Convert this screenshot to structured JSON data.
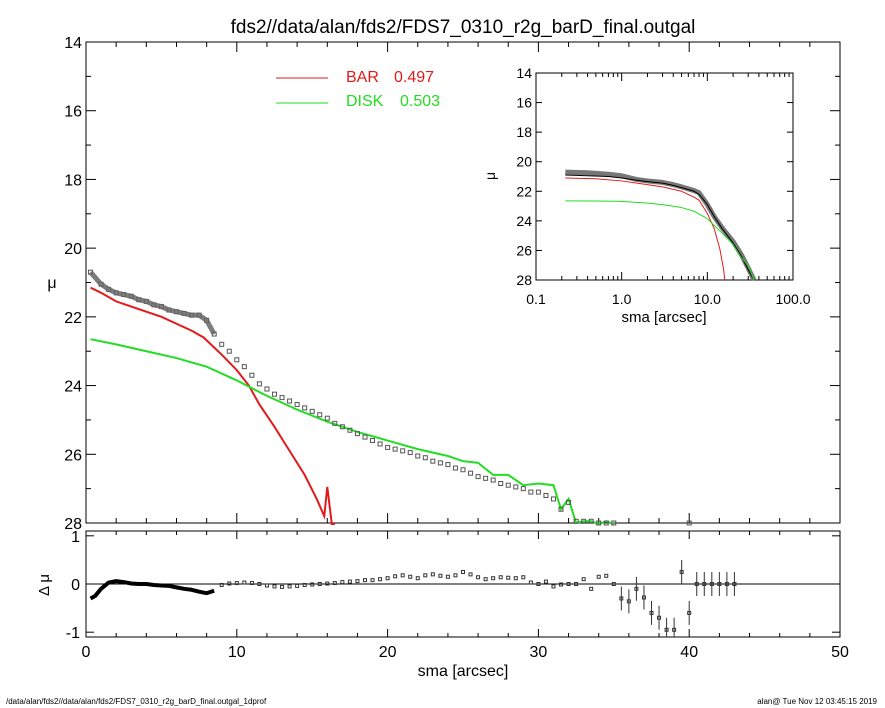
{
  "chart_data": [
    {
      "id": "main",
      "type": "line",
      "title": "fds2//data/alan/fds2/FDS7_0310_r2g_barD_final.outgal",
      "xlabel": "sma [arcsec]",
      "ylabel": "μ",
      "xlim": [
        0,
        50
      ],
      "ylim": [
        28,
        14
      ],
      "yticks": [
        14,
        16,
        18,
        20,
        22,
        24,
        26,
        28
      ],
      "xticks": [
        0,
        10,
        20,
        30,
        40,
        50
      ],
      "legend": {
        "placement": "top-center",
        "entries": [
          {
            "label": "BAR",
            "value": "0.497",
            "color": "#e31a1c"
          },
          {
            "label": "DISK",
            "value": "0.503",
            "color": "#22dd22"
          }
        ]
      },
      "series": [
        {
          "name": "BAR",
          "color": "#e31a1c",
          "x": [
            0.3,
            1.0,
            2.0,
            3.0,
            4.0,
            5.0,
            6.0,
            7.0,
            7.8,
            9.0,
            10.0,
            10.8,
            11.5,
            12.5,
            13.5,
            14.5,
            15.3,
            15.8,
            16.0,
            16.3,
            16.5
          ],
          "y": [
            21.15,
            21.3,
            21.55,
            21.7,
            21.85,
            22.0,
            22.2,
            22.4,
            22.6,
            23.1,
            23.55,
            24.0,
            24.55,
            25.2,
            25.9,
            26.6,
            27.3,
            27.8,
            26.95,
            28.1,
            28.3
          ]
        },
        {
          "name": "DISK",
          "color": "#22dd22",
          "x": [
            0.3,
            2,
            4,
            6,
            8,
            10,
            12,
            14,
            16,
            18,
            20,
            22,
            24,
            25,
            26,
            27,
            28,
            29,
            30,
            31,
            31.5,
            32,
            32.5,
            33,
            33.5,
            34,
            34.5,
            35
          ],
          "y": [
            22.65,
            22.8,
            23.0,
            23.2,
            23.45,
            23.85,
            24.3,
            24.7,
            25.05,
            25.35,
            25.6,
            25.85,
            26.05,
            26.2,
            26.25,
            26.6,
            26.6,
            26.9,
            26.85,
            26.9,
            27.6,
            27.3,
            28.0,
            27.95,
            27.95,
            28.05,
            27.95,
            28.05
          ]
        },
        {
          "name": "",
          "kind": "data-points",
          "color": "#555555",
          "x": [
            0.3,
            1.0,
            1.5,
            2.0,
            2.5,
            3.0,
            3.5,
            4.0,
            4.5,
            5.0,
            5.5,
            6.0,
            6.5,
            7.0,
            7.5,
            8.0,
            8.5,
            9.0,
            9.5,
            10.0,
            10.5,
            11.0,
            11.5,
            12.0,
            12.5,
            13.0,
            13.5,
            14.0,
            14.5,
            15.0,
            15.5,
            16.0,
            16.5,
            17.0,
            17.5,
            18.0,
            18.5,
            19.0,
            19.5,
            20.0,
            20.5,
            21.0,
            21.5,
            22.0,
            22.5,
            23.0,
            23.5,
            24.0,
            24.5,
            25.0,
            25.5,
            26.0,
            26.5,
            27.0,
            27.5,
            28.0,
            28.5,
            29.0,
            29.5,
            30.0,
            30.5,
            31.0,
            31.5,
            32.0,
            32.5,
            33.0,
            33.5,
            34.0,
            34.5,
            35.0,
            40.0
          ],
          "y": [
            20.7,
            21.05,
            21.2,
            21.3,
            21.35,
            21.4,
            21.5,
            21.55,
            21.65,
            21.7,
            21.8,
            21.85,
            21.9,
            21.95,
            21.95,
            22.1,
            22.5,
            22.8,
            23.0,
            23.25,
            23.45,
            23.7,
            23.95,
            24.1,
            24.25,
            24.35,
            24.45,
            24.55,
            24.65,
            24.75,
            24.85,
            24.95,
            25.1,
            25.2,
            25.3,
            25.4,
            25.5,
            25.6,
            25.7,
            25.8,
            25.85,
            25.9,
            25.95,
            26.05,
            26.1,
            26.2,
            26.25,
            26.3,
            26.4,
            26.45,
            26.55,
            26.65,
            26.7,
            26.75,
            26.85,
            26.9,
            26.95,
            27.0,
            27.1,
            27.1,
            27.2,
            27.3,
            27.6,
            27.4,
            27.95,
            27.95,
            27.95,
            28.0,
            28.0,
            28.0,
            28.0
          ]
        }
      ]
    },
    {
      "id": "inset",
      "type": "line",
      "title": "",
      "xlabel": "sma [arcsec]",
      "ylabel": "μ",
      "xscale": "log",
      "xlim": [
        0.1,
        100.0
      ],
      "ylim": [
        28,
        14
      ],
      "xticks": [
        0.1,
        1.0,
        10.0,
        100.0
      ],
      "xtick_labels": [
        "0.1",
        "1.0",
        "10.0",
        "100.0"
      ],
      "yticks": [
        14,
        16,
        18,
        20,
        22,
        24,
        26,
        28
      ],
      "series": [
        {
          "name": "",
          "color": "#777777",
          "x": [
            0.22,
            0.4,
            0.7,
            1.0,
            1.5,
            2.0,
            3.0,
            4.0,
            5.0,
            7.0,
            8.0,
            10.0,
            12.0,
            15.0,
            20.0,
            25.0,
            30.0,
            35.0
          ],
          "y": [
            20.7,
            20.75,
            20.85,
            20.95,
            21.2,
            21.3,
            21.4,
            21.55,
            21.7,
            21.95,
            22.1,
            22.9,
            23.7,
            24.5,
            25.4,
            26.3,
            27.2,
            28.0
          ]
        },
        {
          "name": "",
          "color": "#000000",
          "x": [
            0.22,
            0.4,
            0.7,
            1.0,
            1.5,
            2.0,
            3.0,
            4.0,
            5.0,
            7.0,
            8.0,
            10.0,
            12.0,
            15.0,
            20.0,
            25.0,
            30.0,
            35.0
          ],
          "y": [
            20.9,
            20.95,
            21.0,
            21.1,
            21.25,
            21.35,
            21.45,
            21.6,
            21.75,
            22.0,
            22.2,
            22.9,
            23.7,
            24.55,
            25.5,
            26.4,
            27.3,
            28.1
          ]
        },
        {
          "name": "BAR",
          "color": "#e31a1c",
          "x": [
            0.22,
            0.5,
            1.0,
            2.0,
            3.0,
            5.0,
            7.0,
            8.0,
            10.0,
            12.0,
            14.0,
            15.5,
            16.0
          ],
          "y": [
            21.1,
            21.15,
            21.3,
            21.55,
            21.7,
            22.0,
            22.4,
            22.6,
            23.5,
            24.5,
            25.9,
            27.3,
            28.1
          ]
        },
        {
          "name": "DISK",
          "color": "#22dd22",
          "x": [
            0.22,
            0.5,
            1.0,
            2.0,
            3.0,
            5.0,
            7.0,
            10.0,
            12.0,
            15.0,
            20.0,
            25.0,
            30.0,
            35.0
          ],
          "y": [
            22.65,
            22.66,
            22.68,
            22.8,
            22.9,
            23.1,
            23.35,
            23.85,
            24.3,
            24.85,
            25.6,
            26.5,
            27.0,
            28.0
          ]
        }
      ]
    },
    {
      "id": "residual",
      "type": "scatter",
      "title": "",
      "xlabel": "",
      "ylabel": "Δ μ",
      "xlim": [
        0,
        50
      ],
      "ylim": [
        -1.1,
        1.1
      ],
      "yticks": [
        1,
        0,
        -1
      ],
      "zero_line": true,
      "series": [
        {
          "name": "",
          "color": "#333333",
          "x": [
            0.3,
            0.6,
            1.0,
            1.5,
            2.0,
            2.5,
            3.0,
            3.5,
            4.0,
            4.5,
            5.0,
            5.5,
            6.0,
            6.5,
            7.0,
            7.5,
            8.0,
            8.5,
            9.0,
            9.5,
            10.0,
            10.5,
            11.0,
            11.5,
            12.0,
            12.5,
            13.0,
            13.5,
            14.0,
            14.5,
            15.0,
            15.5,
            16.0,
            16.5,
            17.0,
            17.5,
            18.0,
            18.5,
            19.0,
            19.5,
            20.0,
            20.5,
            21.0,
            21.5,
            22.0,
            22.5,
            23.0,
            23.5,
            24.0,
            24.5,
            25.0,
            25.5,
            26.0,
            26.5,
            27.0,
            27.5,
            28.0,
            28.5,
            29.0,
            29.5,
            30.0,
            30.5,
            31.0,
            31.5,
            32.0,
            32.5,
            33.0,
            33.5,
            34.0,
            34.5,
            35.0,
            35.5,
            36.0,
            36.5,
            37.0,
            37.5,
            38.0,
            38.5,
            39.0,
            39.5,
            40.0,
            40.5,
            41.0,
            41.5,
            42.0,
            42.5,
            43.0
          ],
          "y": [
            -0.3,
            -0.25,
            -0.1,
            0.03,
            0.06,
            0.04,
            0.01,
            0.0,
            0.0,
            -0.02,
            -0.03,
            -0.04,
            -0.07,
            -0.1,
            -0.12,
            -0.16,
            -0.19,
            -0.14,
            -0.02,
            0.01,
            0.02,
            0.03,
            0.02,
            0.0,
            -0.03,
            -0.05,
            -0.06,
            -0.05,
            -0.04,
            -0.02,
            -0.01,
            0.0,
            0.01,
            0.02,
            0.04,
            0.05,
            0.06,
            0.08,
            0.08,
            0.1,
            0.12,
            0.16,
            0.18,
            0.15,
            0.12,
            0.18,
            0.2,
            0.17,
            0.15,
            0.18,
            0.25,
            0.2,
            0.14,
            0.1,
            0.12,
            0.14,
            0.13,
            0.12,
            0.14,
            0.03,
            0.0,
            0.05,
            -0.05,
            -0.01,
            0.0,
            0.0,
            0.1,
            -0.1,
            0.15,
            0.17,
            0.0,
            -0.3,
            -0.36,
            -0.1,
            -0.28,
            -0.6,
            -0.7,
            -0.95,
            -0.95,
            0.25,
            -0.6,
            0.0,
            0.0,
            0.0,
            0.0,
            0.0,
            0.0
          ]
        }
      ]
    }
  ],
  "footer": {
    "left": "/data/alan/fds2//data/alan/fds2/FDS7_0310_r2g_barD_final.outgal_1dprof",
    "right": "alan@  Tue Nov 12 03:45:15 2019"
  }
}
